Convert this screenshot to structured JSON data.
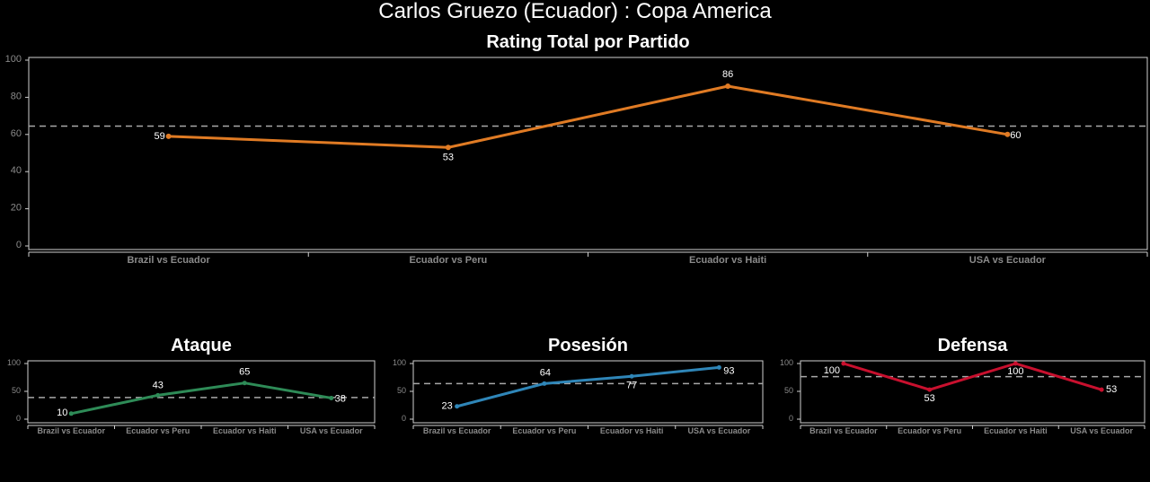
{
  "page_title": "Carlos Gruezo (Ecuador) :  Copa  America",
  "chart_data": [
    {
      "id": "total",
      "type": "line",
      "title": "Rating Total por Partido",
      "categories": [
        "Brazil vs Ecuador",
        "Ecuador vs Peru",
        "Ecuador vs Haiti",
        "USA vs Ecuador"
      ],
      "values": [
        59,
        53,
        86,
        60
      ],
      "ylim": [
        0,
        100
      ],
      "yticks": [
        0,
        20,
        40,
        60,
        80,
        100
      ],
      "reference_line": 64.5,
      "color": "#e07b24"
    },
    {
      "id": "ataque",
      "type": "line",
      "title": "Ataque",
      "categories": [
        "Brazil vs Ecuador",
        "Ecuador vs Peru",
        "Ecuador vs Haiti",
        "USA vs Ecuador"
      ],
      "values": [
        10,
        43,
        65,
        38
      ],
      "ylim": [
        0,
        100
      ],
      "yticks": [
        0,
        50,
        100
      ],
      "reference_line": 39,
      "color": "#2e8b57"
    },
    {
      "id": "posesion",
      "type": "line",
      "title": "Posesión",
      "categories": [
        "Brazil vs Ecuador",
        "Ecuador vs Peru",
        "Ecuador vs Haiti",
        "USA vs Ecuador"
      ],
      "values": [
        23,
        64,
        77,
        93
      ],
      "ylim": [
        0,
        100
      ],
      "yticks": [
        0,
        50,
        100
      ],
      "reference_line": 64,
      "color": "#2f86b8"
    },
    {
      "id": "defensa",
      "type": "line",
      "title": "Defensa",
      "categories": [
        "Brazil vs Ecuador",
        "Ecuador vs Peru",
        "Ecuador vs Haiti",
        "USA vs Ecuador"
      ],
      "values": [
        100,
        53,
        100,
        53
      ],
      "ylim": [
        0,
        100
      ],
      "yticks": [
        0,
        50,
        100
      ],
      "reference_line": 76.5,
      "color": "#c8102e"
    }
  ]
}
